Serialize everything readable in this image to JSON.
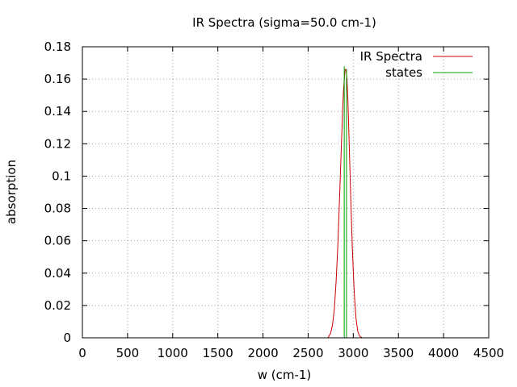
{
  "chart_data": {
    "type": "line",
    "title": "IR Spectra (sigma=50.0 cm-1)",
    "xlabel": "w (cm-1)",
    "ylabel": "absorption",
    "xlim": [
      0,
      4500
    ],
    "ylim": [
      0,
      0.18
    ],
    "xticks": [
      0,
      500,
      1000,
      1500,
      2000,
      2500,
      3000,
      3500,
      4000,
      4500
    ],
    "yticks": [
      0,
      0.02,
      0.04,
      0.06,
      0.08,
      0.1,
      0.12,
      0.14,
      0.16,
      0.18
    ],
    "xtick_labels": [
      "0",
      "500",
      "1000",
      "1500",
      "2000",
      "2500",
      "3000",
      "3500",
      "4000",
      "4500"
    ],
    "ytick_labels": [
      "0",
      "0.02",
      "0.04",
      "0.06",
      "0.08",
      "0.1",
      "0.12",
      "0.14",
      "0.16",
      "0.18"
    ],
    "grid": true,
    "legend_position": "top-right",
    "series": [
      {
        "name": "IR Spectra",
        "color": "#cc0000",
        "x": [
          2720,
          2750,
          2770,
          2790,
          2810,
          2830,
          2850,
          2870,
          2890,
          2900,
          2910,
          2920,
          2930,
          2940,
          2950,
          2970,
          2990,
          3010,
          3030,
          3050,
          3070,
          3100
        ],
        "y": [
          0.0,
          0.003,
          0.008,
          0.018,
          0.035,
          0.058,
          0.09,
          0.122,
          0.151,
          0.16,
          0.166,
          0.166,
          0.16,
          0.148,
          0.13,
          0.09,
          0.055,
          0.028,
          0.012,
          0.004,
          0.001,
          0.0
        ]
      },
      {
        "name": "states",
        "color": "#00a000",
        "type": "impulse",
        "x": [
          2900,
          2925
        ],
        "y": [
          0.168,
          0.166
        ]
      }
    ]
  }
}
